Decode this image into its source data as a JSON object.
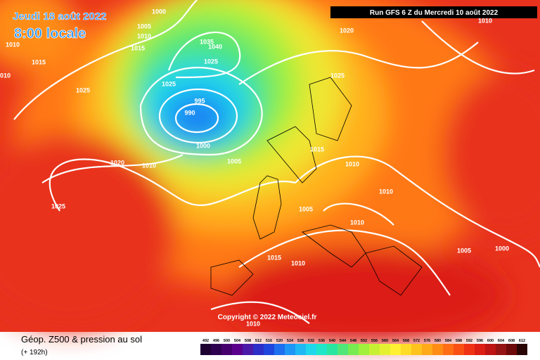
{
  "header": {
    "valid_date": "Jeudi 18 août 2022",
    "local_time": "8:00 locale",
    "run": "Run GFS 6 Z du Mercredi 10 août 2022"
  },
  "copyright": "Copyright © 2022 Meteociel.fr",
  "footer": {
    "title": "Géop. Z500 & pression au sol",
    "lead": "(+ 192h)"
  },
  "isobar_labels": [
    "1000",
    "1005",
    "1010",
    "1015",
    "1010",
    "1015",
    "1010",
    "1025",
    "1035",
    "1040",
    "1025",
    "1025",
    "995",
    "990",
    "1000",
    "1005",
    "1010",
    "1020",
    "1025",
    "1020",
    "1025",
    "1010",
    "1015",
    "1010",
    "1010",
    "1005",
    "1010",
    "1005",
    "1000",
    "1015",
    "1010",
    "1010"
  ],
  "scale": {
    "values": [
      492,
      496,
      500,
      504,
      508,
      512,
      516,
      520,
      524,
      528,
      532,
      536,
      540,
      544,
      548,
      552,
      556,
      560,
      564,
      568,
      572,
      576,
      580,
      584,
      588,
      592,
      596,
      600,
      604,
      608,
      612
    ],
    "colors": [
      "#1e0033",
      "#300050",
      "#46006e",
      "#5a008c",
      "#4b1aa8",
      "#2d2dc8",
      "#1e46dc",
      "#1e6ef0",
      "#1e96f5",
      "#1eb9f5",
      "#1ed7eb",
      "#1ee6c8",
      "#28e6a0",
      "#50e678",
      "#78eb50",
      "#a0f03c",
      "#c8f032",
      "#e6f032",
      "#fff032",
      "#ffdc28",
      "#ffc31e",
      "#ffaa19",
      "#ff8c14",
      "#ff6e14",
      "#fa5014",
      "#f03214",
      "#dc1e14",
      "#be1414",
      "#961414",
      "#6e0a0a",
      "#2a0505"
    ]
  }
}
